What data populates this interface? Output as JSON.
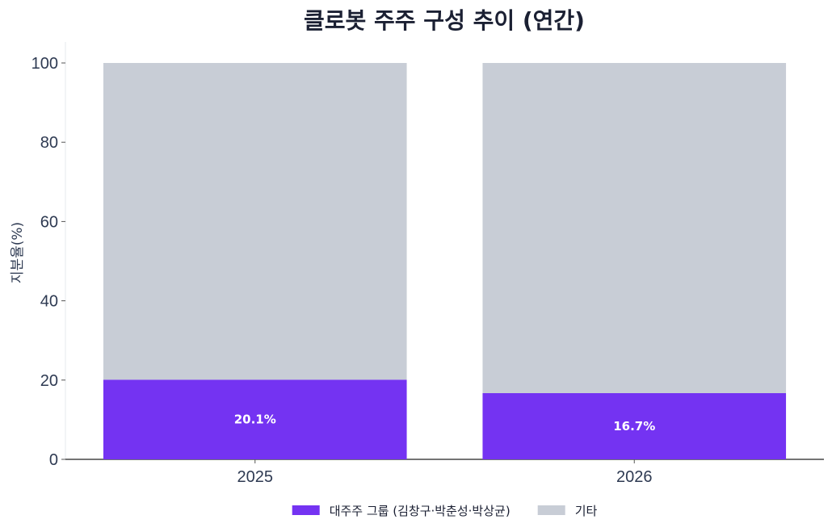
{
  "chart_data": {
    "type": "bar",
    "stacked": true,
    "title": "클로봇 주주 구성 추이 (연간)",
    "xlabel": "",
    "ylabel": "지분율(%)",
    "ylim": [
      0,
      100
    ],
    "yticks": [
      0,
      20,
      40,
      60,
      80,
      100
    ],
    "categories": [
      "2025",
      "2026"
    ],
    "series": [
      {
        "name": "대주주 그룹 (김창구·박춘성·박상균)",
        "values": [
          20.1,
          16.7
        ],
        "labels": [
          "20.1%",
          "16.7%"
        ],
        "color": "#7433f2"
      },
      {
        "name": "기타",
        "values": [
          79.9,
          83.3
        ],
        "color": "#c8cdd6"
      }
    ],
    "grid": false,
    "legend": "bottom-center"
  }
}
